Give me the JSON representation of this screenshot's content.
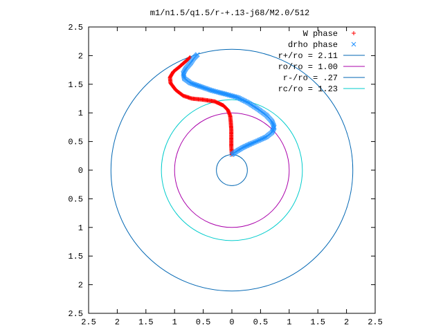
{
  "chart_data": {
    "type": "scatter",
    "title": "m1/n1.5/q1.5/r-+.13-j68/M2.0/512",
    "xlabel": "",
    "ylabel": "",
    "xlim": [
      -2.5,
      2.5
    ],
    "ylim": [
      -2.5,
      2.5
    ],
    "x_ticks": [
      -2.5,
      -2,
      -1.5,
      -1,
      -0.5,
      0,
      0.5,
      1,
      1.5,
      2,
      2.5
    ],
    "y_ticks": [
      -2.5,
      -2,
      -1.5,
      -1,
      -0.5,
      0,
      0.5,
      1,
      1.5,
      2,
      2.5
    ],
    "x_tick_labels": [
      "2.5",
      "2",
      "1.5",
      "1",
      "0.5",
      "0",
      "0.5",
      "1",
      "1.5",
      "2",
      "2.5"
    ],
    "y_tick_labels": [
      "2.5",
      "2",
      "1.5",
      "1",
      "0.5",
      "0",
      "0.5",
      "1",
      "1.5",
      "2",
      "2.5"
    ],
    "grid": false,
    "legend_position": "top-right",
    "series": [
      {
        "name": "W phase",
        "kind": "points",
        "marker": "plus",
        "color": "#ff0000",
        "points": [
          [
            0.0,
            0.27
          ],
          [
            -0.01,
            0.4
          ],
          [
            -0.01,
            0.55
          ],
          [
            -0.01,
            0.7
          ],
          [
            -0.02,
            0.85
          ],
          [
            -0.03,
            0.95
          ],
          [
            -0.07,
            1.05
          ],
          [
            -0.15,
            1.13
          ],
          [
            -0.3,
            1.2
          ],
          [
            -0.5,
            1.23
          ],
          [
            -0.7,
            1.25
          ],
          [
            -0.85,
            1.3
          ],
          [
            -0.98,
            1.4
          ],
          [
            -1.07,
            1.52
          ],
          [
            -1.08,
            1.62
          ],
          [
            -1.02,
            1.72
          ],
          [
            -0.92,
            1.8
          ],
          [
            -0.83,
            1.88
          ],
          [
            -0.76,
            1.94
          ],
          [
            -0.73,
            1.97
          ]
        ]
      },
      {
        "name": "drho phase",
        "kind": "points",
        "marker": "cross",
        "color": "#1e90ff",
        "points": [
          [
            0.0,
            0.27
          ],
          [
            0.08,
            0.33
          ],
          [
            0.2,
            0.4
          ],
          [
            0.33,
            0.46
          ],
          [
            0.47,
            0.52
          ],
          [
            0.6,
            0.58
          ],
          [
            0.7,
            0.66
          ],
          [
            0.74,
            0.75
          ],
          [
            0.7,
            0.85
          ],
          [
            0.6,
            0.96
          ],
          [
            0.45,
            1.07
          ],
          [
            0.28,
            1.18
          ],
          [
            0.1,
            1.27
          ],
          [
            -0.12,
            1.33
          ],
          [
            -0.35,
            1.39
          ],
          [
            -0.55,
            1.46
          ],
          [
            -0.72,
            1.52
          ],
          [
            -0.83,
            1.6
          ],
          [
            -0.85,
            1.69
          ],
          [
            -0.8,
            1.78
          ],
          [
            -0.72,
            1.87
          ],
          [
            -0.66,
            1.96
          ],
          [
            -0.6,
            2.02
          ]
        ]
      },
      {
        "name": "r+/ro = 2.11",
        "kind": "circle",
        "radius": 2.11,
        "color": "#0066b3"
      },
      {
        "name": "ro/ro = 1.00",
        "kind": "circle",
        "radius": 1.0,
        "color": "#aa00aa"
      },
      {
        "name": "r-/ro = .27",
        "kind": "circle",
        "radius": 0.27,
        "color": "#0066b3"
      },
      {
        "name": "rc/ro = 1.23",
        "kind": "circle",
        "radius": 1.23,
        "color": "#00cccc"
      }
    ]
  }
}
